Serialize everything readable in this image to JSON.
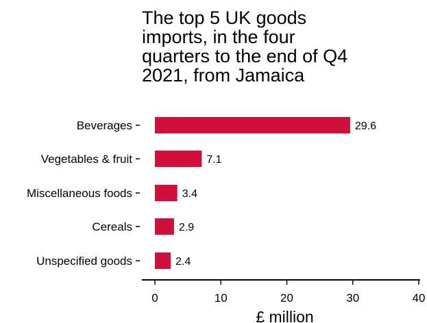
{
  "chart_data": {
    "type": "bar",
    "orientation": "horizontal",
    "title_lines": [
      "The top 5 UK goods",
      "imports, in the four",
      "quarters to the end of Q4",
      "2021, from Jamaica"
    ],
    "categories": [
      "Beverages",
      "Vegetables & fruit",
      "Miscellaneous foods",
      "Cereals",
      "Unspecified goods"
    ],
    "values": [
      29.6,
      7.1,
      3.4,
      2.9,
      2.4
    ],
    "data_labels": [
      "29.6",
      "7.1",
      "3.4",
      "2.9",
      "2.4"
    ],
    "xlabel": "£ million",
    "ylabel": "",
    "xlim": [
      0,
      40
    ],
    "x_ticks": [
      0,
      10,
      20,
      30,
      40
    ],
    "grid": false,
    "legend": "none",
    "bar_color": "#d0103a"
  }
}
